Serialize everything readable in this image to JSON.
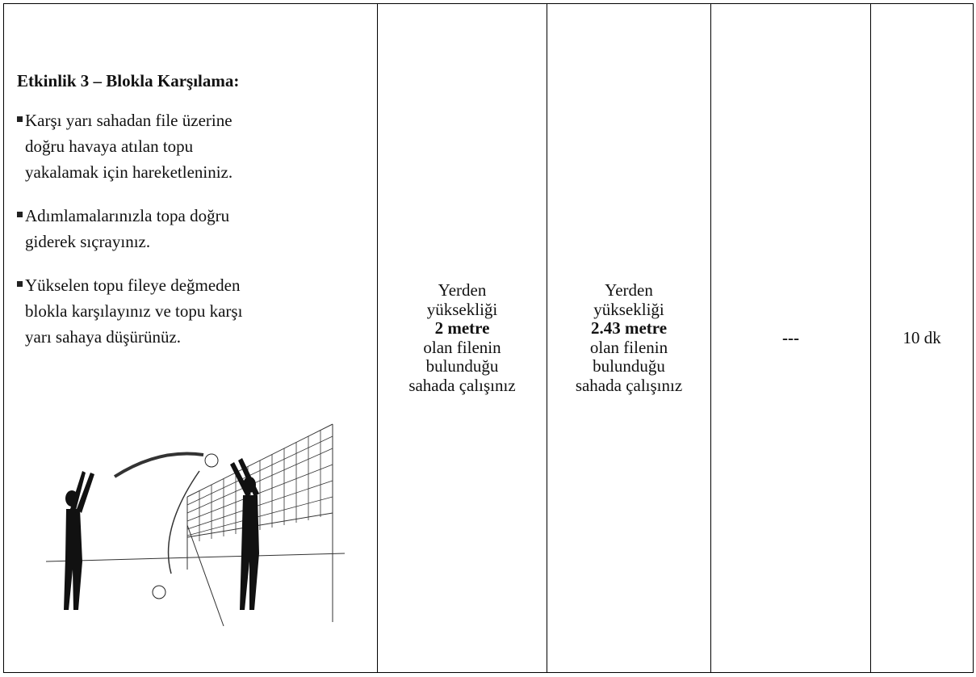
{
  "table": {
    "activity": {
      "title": "Etkinlik 3 – Blokla Karşılama:",
      "bullets": [
        [
          "Karşı yarı sahadan file üzerine",
          "doğru havaya atılan topu",
          "yakalamak için hareketleniniz."
        ],
        [
          "Adımlamalarınızla topa doğru",
          "giderek sıçrayınız."
        ],
        [
          "Yükselen topu fileye değmeden",
          "blokla karşılayınız ve topu karşı",
          "yarı sahaya düşürünüz."
        ]
      ]
    },
    "level1": {
      "before": "Yerden yüksekliği",
      "bold": "2 metre",
      "after": "olan filenin bulunduğu sahada çalışınız"
    },
    "level2": {
      "before": "Yerden yüksekliği",
      "bold": "2.43 metre",
      "after": "olan filenin bulunduğu sahada çalışınız"
    },
    "level3": "---",
    "duration": "10 dk"
  }
}
